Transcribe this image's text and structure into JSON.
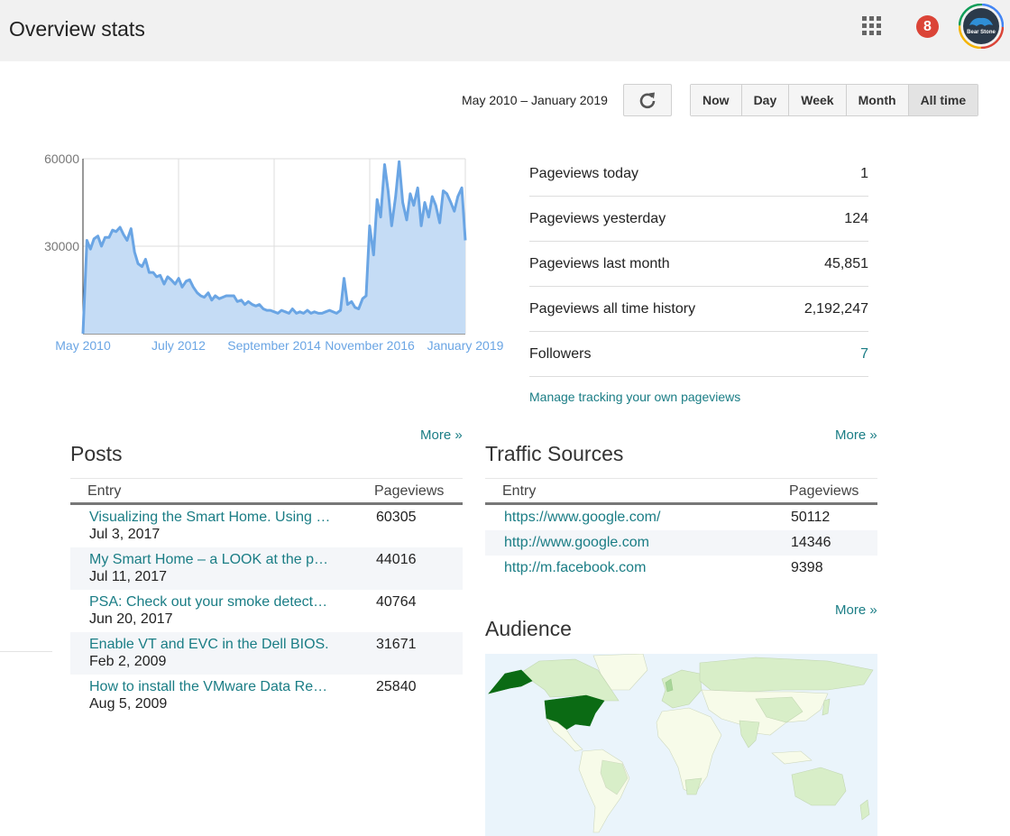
{
  "header": {
    "title": "Overview stats",
    "notification_count": "8",
    "avatar_text": "Bear Stone"
  },
  "controls": {
    "date_range": "May 2010 – January 2019",
    "ranges": [
      "Now",
      "Day",
      "Week",
      "Month",
      "All time"
    ],
    "active_range": "All time"
  },
  "chart_data": {
    "type": "area",
    "color": "#6aa5e4",
    "x_labels": [
      "May 2010",
      "July 2012",
      "September 2014",
      "November 2016",
      "January 2019"
    ],
    "y_ticks": [
      60000,
      30000
    ],
    "ylim": [
      0,
      60000
    ],
    "xlim": [
      2010.33,
      2019.0
    ],
    "grid": true,
    "x": [
      2010.33,
      2010.42,
      2010.5,
      2010.58,
      2010.67,
      2010.75,
      2010.83,
      2010.92,
      2011.0,
      2011.08,
      2011.17,
      2011.25,
      2011.33,
      2011.42,
      2011.5,
      2011.58,
      2011.67,
      2011.75,
      2011.83,
      2011.92,
      2012.0,
      2012.08,
      2012.17,
      2012.25,
      2012.33,
      2012.42,
      2012.5,
      2012.58,
      2012.67,
      2012.75,
      2012.83,
      2012.92,
      2013.0,
      2013.08,
      2013.17,
      2013.25,
      2013.33,
      2013.42,
      2013.5,
      2013.58,
      2013.67,
      2013.75,
      2013.83,
      2013.92,
      2014.0,
      2014.08,
      2014.17,
      2014.25,
      2014.33,
      2014.42,
      2014.5,
      2014.58,
      2014.67,
      2014.75,
      2014.83,
      2014.92,
      2015.0,
      2015.08,
      2015.17,
      2015.25,
      2015.33,
      2015.42,
      2015.5,
      2015.58,
      2015.67,
      2015.75,
      2015.83,
      2015.92,
      2016.0,
      2016.08,
      2016.17,
      2016.25,
      2016.33,
      2016.42,
      2016.5,
      2016.58,
      2016.67,
      2016.75,
      2016.83,
      2016.92,
      2017.0,
      2017.08,
      2017.17,
      2017.25,
      2017.33,
      2017.42,
      2017.5,
      2017.58,
      2017.67,
      2017.75,
      2017.83,
      2017.92,
      2018.0,
      2018.08,
      2018.17,
      2018.25,
      2018.33,
      2018.42,
      2018.5,
      2018.58,
      2018.67,
      2018.75,
      2018.83,
      2018.92,
      2019.0
    ],
    "values": [
      0,
      32000,
      29000,
      32500,
      33500,
      30000,
      33000,
      33000,
      35500,
      35000,
      36500,
      34000,
      32000,
      36000,
      28000,
      24000,
      23000,
      25500,
      21000,
      21000,
      19500,
      20000,
      17000,
      19500,
      18500,
      17000,
      19000,
      16000,
      18000,
      18500,
      16000,
      14000,
      13000,
      12500,
      14000,
      11500,
      13000,
      12000,
      12500,
      13000,
      13000,
      13000,
      11000,
      11500,
      10000,
      11000,
      10000,
      9500,
      10000,
      8500,
      8000,
      8000,
      7500,
      7000,
      8000,
      7500,
      7000,
      8500,
      7000,
      7500,
      7000,
      8000,
      7000,
      7500,
      7000,
      7000,
      7500,
      8000,
      7500,
      7000,
      8000,
      19000,
      10000,
      11000,
      9000,
      8500,
      12000,
      13000,
      37000,
      27000,
      46000,
      40000,
      58000,
      49000,
      37000,
      47000,
      59000,
      45000,
      39000,
      48000,
      44000,
      50000,
      37000,
      45000,
      40000,
      47000,
      44000,
      38000,
      49000,
      48000,
      45000,
      42000,
      47000,
      50000,
      32000
    ]
  },
  "stats": [
    {
      "label": "Pageviews today",
      "value": "1"
    },
    {
      "label": "Pageviews yesterday",
      "value": "124"
    },
    {
      "label": "Pageviews last month",
      "value": "45,851"
    },
    {
      "label": "Pageviews all time history",
      "value": "2,192,247"
    },
    {
      "label": "Followers",
      "value": "7"
    }
  ],
  "manage_link": "Manage tracking your own pageviews",
  "posts": {
    "title": "Posts",
    "more": "More »",
    "col_entry": "Entry",
    "col_views": "Pageviews",
    "rows": [
      {
        "title": "Visualizing the Smart Home. Using …",
        "date": "Jul 3, 2017",
        "views": "60305"
      },
      {
        "title": "My Smart Home – a LOOK at the p…",
        "date": "Jul 11, 2017",
        "views": "44016"
      },
      {
        "title": "PSA: Check out your smoke detect…",
        "date": "Jun 20, 2017",
        "views": "40764"
      },
      {
        "title": "Enable VT and EVC in the Dell BIOS.",
        "date": "Feb 2, 2009",
        "views": "31671"
      },
      {
        "title": "How to install the VMware Data Re…",
        "date": "Aug 5, 2009",
        "views": "25840"
      }
    ]
  },
  "traffic": {
    "title": "Traffic Sources",
    "more": "More »",
    "col_entry": "Entry",
    "col_views": "Pageviews",
    "rows": [
      {
        "url": "https://www.google.com/",
        "views": "50112"
      },
      {
        "url": "http://www.google.com",
        "views": "14346"
      },
      {
        "url": "http://m.facebook.com",
        "views": "9398"
      }
    ]
  },
  "audience": {
    "title": "Audience",
    "more": "More »",
    "colors": {
      "ocean": "#eaf4fb",
      "low": "#f7fbe9",
      "mid": "#d8eec8",
      "high": "#a8d699",
      "top": "#0b6b14"
    }
  }
}
